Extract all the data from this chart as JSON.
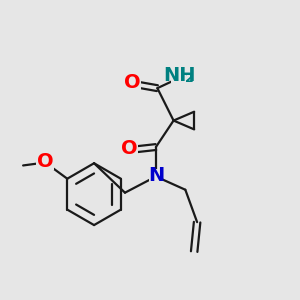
{
  "bg_color": "#e6e6e6",
  "bond_color": "#1a1a1a",
  "bond_width": 1.6,
  "atom_colors": {
    "O": "#ff0000",
    "N_amide": "#008080",
    "N_main": "#0000cc",
    "C": "#1a1a1a"
  },
  "font_size": 14,
  "font_size_sub": 9
}
